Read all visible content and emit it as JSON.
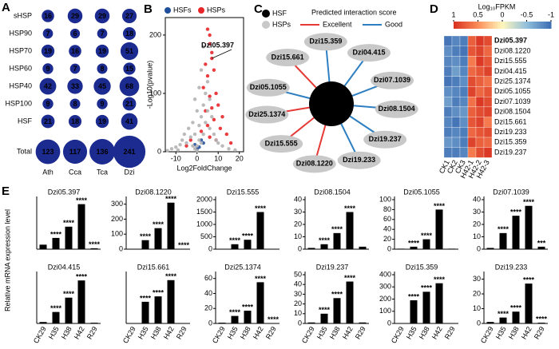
{
  "chart_data": [
    {
      "type": "bubble_grid",
      "panel": "A",
      "color": "#1c2b8f",
      "rows": [
        "sHSP",
        "HSP90",
        "HSP70",
        "HSP60",
        "HSP40",
        "HSP100",
        "HSF",
        "Total"
      ],
      "columns": [
        "Ath",
        "Cca",
        "Tca",
        "Dzi"
      ],
      "values": [
        [
          16,
          29,
          29,
          27
        ],
        [
          7,
          6,
          7,
          18
        ],
        [
          19,
          16,
          19,
          51
        ],
        [
          9,
          7,
          8,
          15
        ],
        [
          42,
          33,
          45,
          68
        ],
        [
          9,
          8,
          9,
          21
        ],
        [
          21,
          18,
          19,
          41
        ],
        [
          123,
          117,
          136,
          241
        ]
      ]
    },
    {
      "type": "scatter",
      "panel": "B",
      "xlabel": "Log2FoldChange",
      "ylabel": "-Log10(pvalue)",
      "xlim": [
        -15,
        22
      ],
      "ylim": [
        0,
        230
      ],
      "xticks": [
        -10,
        0,
        10,
        20
      ],
      "yticks": [
        0,
        100,
        200
      ],
      "annotation": "Dzi05.397",
      "series": [
        {
          "color": "#b3b3b3",
          "x": [
            -12,
            -10,
            -8,
            -7,
            -6,
            -5,
            -4,
            -3,
            -2,
            -2,
            -1,
            -1,
            0,
            0,
            1,
            1,
            2,
            2,
            3,
            3,
            4,
            4,
            5,
            5,
            6,
            6,
            7,
            8,
            9,
            10,
            12,
            15,
            -9,
            -14,
            18,
            2,
            3,
            0,
            -1,
            1
          ],
          "values": [
            5,
            8,
            12,
            20,
            30,
            15,
            40,
            25,
            50,
            10,
            30,
            5,
            2,
            10,
            20,
            45,
            60,
            15,
            80,
            30,
            100,
            50,
            120,
            70,
            90,
            40,
            60,
            30,
            20,
            15,
            10,
            5,
            3,
            2,
            3,
            140,
            180,
            70,
            90,
            110
          ]
        },
        {
          "name": "HSPs",
          "color": "#e8262a",
          "x": [
            5,
            6,
            6,
            7,
            7,
            4,
            8,
            5,
            3,
            9,
            6,
            10,
            7,
            4,
            12,
            8,
            5,
            11,
            14,
            6,
            9,
            2,
            16,
            -3,
            -5
          ],
          "values": [
            210,
            200,
            185,
            170,
            160,
            150,
            140,
            130,
            110,
            100,
            95,
            80,
            75,
            70,
            60,
            55,
            45,
            40,
            30,
            25,
            20,
            35,
            15,
            20,
            10
          ]
        },
        {
          "name": "HSFs",
          "color": "#1f4e9c",
          "x": [
            1,
            2,
            -1,
            3,
            0
          ],
          "values": [
            8,
            20,
            12,
            15,
            5
          ]
        }
      ]
    },
    {
      "type": "heatmap",
      "panel": "D",
      "colorbar_title": "Log₁₀FPKM",
      "colorbar_ticks": [
        1,
        0.5,
        0,
        -0.5,
        -1
      ],
      "colorscale": [
        "#d7301f",
        "#fc8d59",
        "#fff7bc",
        "#91bfdb",
        "#3c6db3"
      ],
      "columns": [
        "CK1",
        "CK2",
        "CK3",
        "H42-1",
        "H42-2",
        "H42-3"
      ],
      "rows": [
        "Dzi05.397",
        "Dzi08.1220",
        "Dzi15.555",
        "Dzi04.415",
        "Dzi25.1374",
        "Dzi05.1055",
        "Dzi07.1039",
        "Dzi08.1504",
        "Dzi15.661",
        "Dzi19.233",
        "Dzi15.359",
        "Dzi19.237"
      ],
      "row_label_colors": [
        "#e8262a",
        "#000000",
        "#000000",
        "#000000",
        "#000000",
        "#000000",
        "#000000",
        "#000000",
        "#000000",
        "#000000",
        "#000000",
        "#000000"
      ],
      "values": [
        [
          -0.95,
          -0.85,
          -0.9,
          0.75,
          0.95,
          0.85
        ],
        [
          -0.8,
          -0.9,
          -0.95,
          0.8,
          0.9,
          0.7
        ],
        [
          -0.85,
          -0.8,
          -0.9,
          0.6,
          0.95,
          0.8
        ],
        [
          -0.9,
          -0.7,
          -0.85,
          0.7,
          0.8,
          0.9
        ],
        [
          -0.95,
          -0.9,
          -0.8,
          0.85,
          0.75,
          0.65
        ],
        [
          -0.8,
          -0.85,
          -0.9,
          0.9,
          0.7,
          0.8
        ],
        [
          -0.7,
          -0.9,
          -0.85,
          0.65,
          0.95,
          0.85
        ],
        [
          -0.9,
          -0.8,
          -0.75,
          0.75,
          0.85,
          0.9
        ],
        [
          -0.85,
          -0.95,
          -0.8,
          0.8,
          0.9,
          0.6
        ],
        [
          -0.9,
          -0.85,
          -0.9,
          0.7,
          0.8,
          0.85
        ],
        [
          -0.75,
          -0.8,
          -0.9,
          0.9,
          0.75,
          0.7
        ],
        [
          -0.9,
          -0.9,
          -0.85,
          0.6,
          0.85,
          0.95
        ]
      ]
    },
    {
      "type": "bar",
      "panel": "E",
      "ylabel": "Relative mRNA expression level",
      "title": "Dzi05.397",
      "color": "#000000",
      "categories": [
        null,
        null,
        null,
        null,
        null
      ],
      "values": [
        1,
        2.5,
        5,
        10,
        0.2
      ],
      "ylim": [
        0,
        11
      ],
      "yticks": [],
      "sig": [
        null,
        "****",
        "****",
        "****",
        "****"
      ]
    },
    {
      "type": "bar",
      "title": "Dzi08.1220",
      "color": "#000000",
      "categories": [
        null,
        null,
        null,
        null,
        null
      ],
      "values": [
        1,
        60,
        140,
        310,
        2
      ],
      "ylim": [
        0,
        330
      ],
      "yticks": [
        0,
        100,
        200,
        300
      ],
      "sig": [
        null,
        "****",
        "****",
        "****",
        "****"
      ]
    },
    {
      "type": "bar",
      "title": "Dzi15.555",
      "color": "#000000",
      "categories": [
        null,
        null,
        null,
        null,
        null
      ],
      "values": [
        1,
        200,
        380,
        1500,
        5
      ],
      "ylim": [
        0,
        2000
      ],
      "yticks": [
        0,
        500,
        1000,
        1500,
        2000
      ],
      "sig": [
        null,
        "****",
        "****",
        "****",
        null
      ]
    },
    {
      "type": "bar",
      "title": "Dzi08.1504",
      "color": "#000000",
      "categories": [
        null,
        null,
        null,
        null,
        null
      ],
      "values": [
        1,
        4,
        13,
        30,
        2
      ],
      "ylim": [
        0,
        40
      ],
      "yticks": [
        0,
        10,
        20,
        30,
        40
      ],
      "sig": [
        null,
        "****",
        "****",
        "****",
        null
      ]
    },
    {
      "type": "bar",
      "title": "Dzi05.1055",
      "color": "#000000",
      "categories": [
        null,
        null,
        null,
        null,
        null
      ],
      "values": [
        1,
        5,
        20,
        80,
        1
      ],
      "ylim": [
        0,
        100
      ],
      "yticks": [
        0,
        20,
        40,
        60,
        80,
        100
      ],
      "sig": [
        null,
        "****",
        "****",
        "****",
        null
      ]
    },
    {
      "type": "bar",
      "title": "Dzi07.1039",
      "color": "#000000",
      "categories": [
        null,
        null,
        null,
        null,
        null
      ],
      "values": [
        1,
        13,
        27,
        35,
        2
      ],
      "ylim": [
        0,
        40
      ],
      "yticks": [
        0,
        10,
        20,
        30,
        40
      ],
      "sig": [
        null,
        "****",
        "****",
        "****",
        "***"
      ]
    },
    {
      "type": "bar",
      "title": "Dzi04.415",
      "color": "#000000",
      "categories": [
        "CK29",
        "H35",
        "H38",
        "H42",
        "R29"
      ],
      "values": [
        1,
        8,
        18,
        30,
        0.5
      ],
      "ylim": [
        0,
        34
      ],
      "yticks": [],
      "sig": [
        null,
        "****",
        "****",
        "****",
        null
      ]
    },
    {
      "type": "bar",
      "title": "Dzi15.661",
      "color": "#000000",
      "categories": [
        "CK29",
        "H35",
        "H38",
        "H42",
        "R29"
      ],
      "values": [
        1,
        80,
        100,
        160,
        1
      ],
      "ylim": [
        0,
        180
      ],
      "yticks": [],
      "sig": [
        null,
        "****",
        "****",
        "****",
        null
      ]
    },
    {
      "type": "bar",
      "title": "Dzi25.1374",
      "color": "#000000",
      "categories": [
        "CK29",
        "H35",
        "H38",
        "H42",
        "R29"
      ],
      "values": [
        1,
        10,
        17,
        55,
        0.5
      ],
      "ylim": [
        0,
        65
      ],
      "yticks": [
        0,
        20,
        40,
        60
      ],
      "sig": [
        null,
        "****",
        "****",
        "****",
        "****"
      ]
    },
    {
      "type": "bar",
      "title": "Dzi19.237",
      "color": "#000000",
      "categories": [
        "CK29",
        "H35",
        "H38",
        "H42",
        "R29"
      ],
      "values": [
        1,
        10,
        26,
        43,
        1
      ],
      "ylim": [
        0,
        50
      ],
      "yticks": [
        0,
        10,
        20,
        30,
        40,
        50
      ],
      "sig": [
        null,
        "****",
        "****",
        "****",
        null
      ]
    },
    {
      "type": "bar",
      "title": "Dzi15.359",
      "color": "#000000",
      "categories": [
        "CK29",
        "H35",
        "H38",
        "H42",
        "R29"
      ],
      "values": [
        1,
        190,
        260,
        330,
        3
      ],
      "ylim": [
        0,
        400
      ],
      "yticks": [
        0,
        100,
        200,
        300,
        400
      ],
      "sig": [
        null,
        "****",
        "****",
        "****",
        null
      ]
    },
    {
      "type": "bar",
      "title": "Dzi19.233",
      "color": "#000000",
      "categories": [
        "CK29",
        "H35",
        "H38",
        "H42",
        "R29"
      ],
      "values": [
        1,
        4,
        8,
        27,
        0.5
      ],
      "ylim": [
        0,
        33
      ],
      "yticks": [
        0,
        10,
        20,
        30
      ],
      "sig": [
        null,
        "****",
        "****",
        "****",
        "****"
      ]
    }
  ],
  "network": {
    "panel": "C",
    "center": "Dzi05.397",
    "legend": {
      "hsf": "HSF",
      "hsp": "HSPs",
      "score_title": "Predicted interaction score",
      "scores": [
        {
          "label": "Excellent",
          "color": "#e53935"
        },
        {
          "label": "Good",
          "color": "#2e7fc1"
        }
      ]
    },
    "nodes": [
      {
        "label": "Dzi15.359",
        "score": "Good"
      },
      {
        "label": "Dzi04.415",
        "score": "Good"
      },
      {
        "label": "Dzi07.1039",
        "score": "Good"
      },
      {
        "label": "Dzi08.1504",
        "score": "Good"
      },
      {
        "label": "Dzi19.237",
        "score": "Good"
      },
      {
        "label": "Dzi19.233",
        "score": "Good"
      },
      {
        "label": "Dzi08.1220",
        "score": "Excellent"
      },
      {
        "label": "Dzi15.555",
        "score": "Excellent"
      },
      {
        "label": "Dzi25.1374",
        "score": "Excellent"
      },
      {
        "label": "Dzi05.1055",
        "score": "Good"
      },
      {
        "label": "Dzi15.661",
        "score": "Excellent"
      }
    ]
  }
}
